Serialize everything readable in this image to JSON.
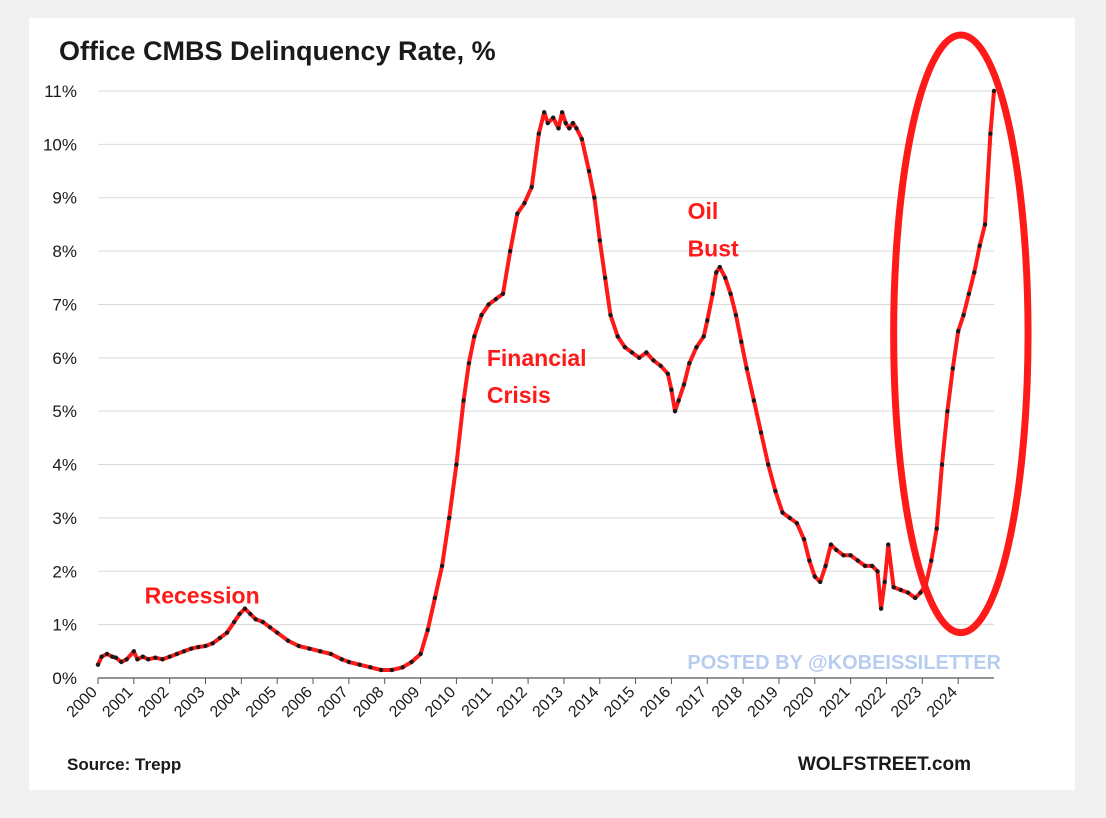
{
  "chart_data": {
    "type": "line",
    "title": "Office CMBS Delinquency Rate, %",
    "xlabel": "",
    "ylabel": "",
    "ylim": [
      0,
      11
    ],
    "xlim": [
      2000,
      2025
    ],
    "y_ticks": [
      0,
      1,
      2,
      3,
      4,
      5,
      6,
      7,
      8,
      9,
      10,
      11
    ],
    "y_tick_labels": [
      "0%",
      "1%",
      "2%",
      "3%",
      "4%",
      "5%",
      "6%",
      "7%",
      "8%",
      "9%",
      "10%",
      "11%"
    ],
    "x_tick_labels": [
      "2000",
      "2001",
      "2002",
      "2003",
      "2004",
      "2005",
      "2006",
      "2007",
      "2008",
      "2009",
      "2010",
      "2011",
      "2012",
      "2013",
      "2014",
      "2015",
      "2016",
      "2017",
      "2018",
      "2019",
      "2020",
      "2021",
      "2022",
      "2023",
      "2024"
    ],
    "grid": true,
    "series": [
      {
        "name": "Office CMBS Delinquency Rate",
        "color": "#ff1a1a",
        "marker_color": "#1a1a1a",
        "x": [
          2000.0,
          2000.1,
          2000.25,
          2000.4,
          2000.5,
          2000.65,
          2000.8,
          2001.0,
          2001.1,
          2001.25,
          2001.4,
          2001.6,
          2001.8,
          2002.0,
          2002.2,
          2002.4,
          2002.6,
          2002.8,
          2003.0,
          2003.2,
          2003.4,
          2003.6,
          2003.8,
          2003.95,
          2004.1,
          2004.25,
          2004.4,
          2004.6,
          2004.8,
          2005.0,
          2005.3,
          2005.6,
          2005.9,
          2006.2,
          2006.5,
          2006.8,
          2007.0,
          2007.3,
          2007.6,
          2007.9,
          2008.2,
          2008.5,
          2008.75,
          2009.0,
          2009.2,
          2009.4,
          2009.6,
          2009.8,
          2010.0,
          2010.2,
          2010.35,
          2010.5,
          2010.7,
          2010.9,
          2011.1,
          2011.3,
          2011.5,
          2011.7,
          2011.9,
          2012.1,
          2012.3,
          2012.45,
          2012.55,
          2012.7,
          2012.85,
          2012.95,
          2013.05,
          2013.15,
          2013.25,
          2013.35,
          2013.5,
          2013.7,
          2013.85,
          2014.0,
          2014.15,
          2014.3,
          2014.5,
          2014.7,
          2014.9,
          2015.1,
          2015.3,
          2015.5,
          2015.7,
          2015.9,
          2016.0,
          2016.1,
          2016.2,
          2016.35,
          2016.5,
          2016.7,
          2016.9,
          2017.0,
          2017.15,
          2017.25,
          2017.35,
          2017.5,
          2017.65,
          2017.8,
          2017.95,
          2018.1,
          2018.3,
          2018.5,
          2018.7,
          2018.9,
          2019.1,
          2019.3,
          2019.5,
          2019.7,
          2019.85,
          2020.0,
          2020.15,
          2020.3,
          2020.45,
          2020.6,
          2020.8,
          2021.0,
          2021.2,
          2021.4,
          2021.6,
          2021.75,
          2021.85,
          2021.95,
          2022.05,
          2022.2,
          2022.4,
          2022.6,
          2022.8,
          2022.95,
          2023.1,
          2023.25,
          2023.4,
          2023.55,
          2023.7,
          2023.85,
          2024.0,
          2024.15,
          2024.3,
          2024.45,
          2024.6,
          2024.75,
          2024.9,
          2025.0
        ],
        "values": [
          0.25,
          0.4,
          0.45,
          0.4,
          0.38,
          0.3,
          0.35,
          0.5,
          0.35,
          0.4,
          0.35,
          0.38,
          0.35,
          0.4,
          0.45,
          0.5,
          0.55,
          0.58,
          0.6,
          0.65,
          0.75,
          0.85,
          1.05,
          1.2,
          1.3,
          1.2,
          1.1,
          1.05,
          0.95,
          0.85,
          0.7,
          0.6,
          0.55,
          0.5,
          0.45,
          0.35,
          0.3,
          0.25,
          0.2,
          0.15,
          0.15,
          0.2,
          0.3,
          0.45,
          0.9,
          1.5,
          2.1,
          3.0,
          4.0,
          5.2,
          5.9,
          6.4,
          6.8,
          7.0,
          7.1,
          7.2,
          8.0,
          8.7,
          8.9,
          9.2,
          10.2,
          10.6,
          10.4,
          10.5,
          10.3,
          10.6,
          10.4,
          10.3,
          10.4,
          10.3,
          10.1,
          9.5,
          9.0,
          8.2,
          7.5,
          6.8,
          6.4,
          6.2,
          6.1,
          6.0,
          6.1,
          5.95,
          5.85,
          5.7,
          5.4,
          5.0,
          5.2,
          5.5,
          5.9,
          6.2,
          6.4,
          6.7,
          7.2,
          7.6,
          7.7,
          7.5,
          7.2,
          6.8,
          6.3,
          5.8,
          5.2,
          4.6,
          4.0,
          3.5,
          3.1,
          3.0,
          2.9,
          2.6,
          2.2,
          1.9,
          1.8,
          2.1,
          2.5,
          2.4,
          2.3,
          2.3,
          2.2,
          2.1,
          2.1,
          2.0,
          1.3,
          1.8,
          2.5,
          1.7,
          1.65,
          1.6,
          1.5,
          1.6,
          1.75,
          2.2,
          2.8,
          4.0,
          5.0,
          5.8,
          6.5,
          6.8,
          7.2,
          7.6,
          8.1,
          8.5,
          10.2,
          11.0
        ]
      }
    ],
    "annotations": [
      {
        "text": "Recession",
        "x": 2001.3,
        "y": 1.4
      },
      {
        "text": "Financial",
        "x": 2010.85,
        "y": 5.85
      },
      {
        "text": "Crisis",
        "x": 2010.85,
        "y": 5.15
      },
      {
        "text": "Oil",
        "x": 2016.45,
        "y": 8.6
      },
      {
        "text": "Bust",
        "x": 2016.45,
        "y": 7.9
      }
    ],
    "highlight_ellipse": {
      "color": "#ff1a1a",
      "x_range": [
        2022.2,
        2025.95
      ],
      "y_range": [
        0.85,
        12.05
      ]
    }
  },
  "footer": {
    "source": "Source: Trepp",
    "credit": "WOLFSTREET.com",
    "posted_by": "POSTED BY @KOBEISSILETTER"
  }
}
